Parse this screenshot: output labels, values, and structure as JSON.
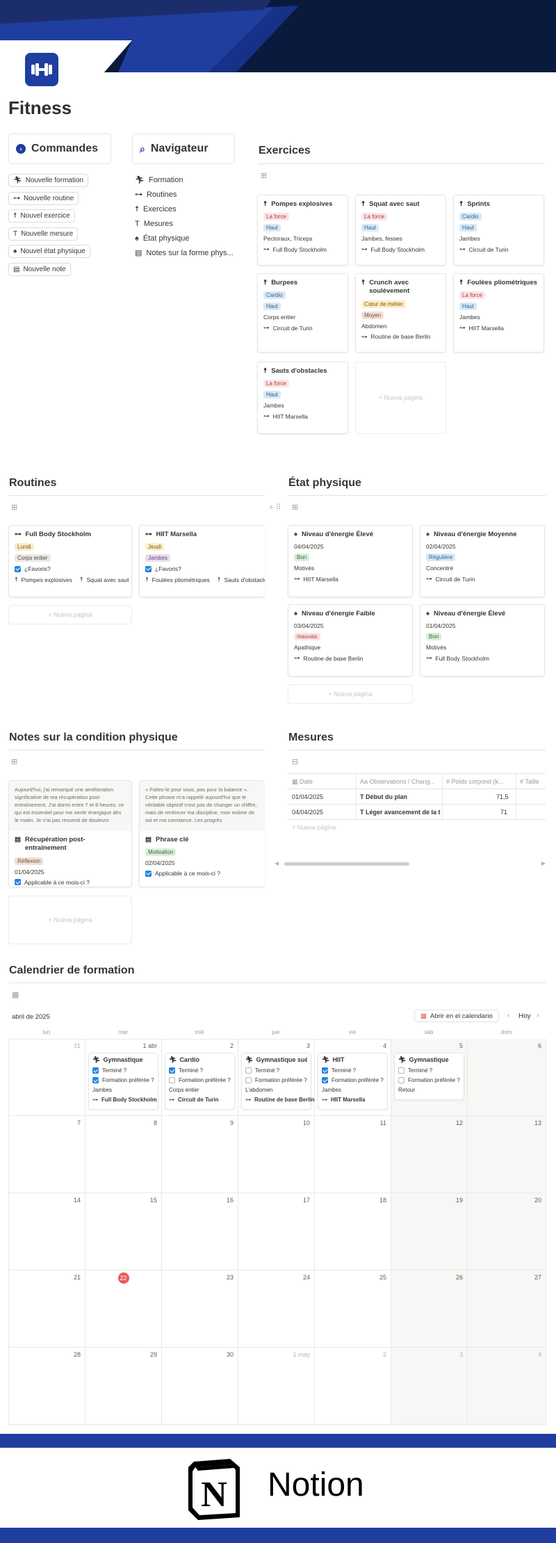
{
  "page": {
    "title": "Fitness"
  },
  "colors": {
    "navy": "#0a1a3d",
    "blue": "#1f3ea0",
    "accent_blue": "#2383e2",
    "today_red": "#eb5757"
  },
  "commandes": {
    "title": "Commandes",
    "buttons": [
      "Nouvelle formation",
      "Nouvelle routine",
      "Nouvel exercice",
      "Nouvelle mesure",
      "Nouvel état physique",
      "Nouvelle note"
    ]
  },
  "navigateur": {
    "title": "Navigateur",
    "items": [
      "Formation",
      "Routines",
      "Exercices",
      "Mesures",
      "État physique",
      "Notes sur la forme phys..."
    ]
  },
  "exercices": {
    "title": "Exercices",
    "cards": [
      {
        "title": "Pompes explosives",
        "tag1": "La force",
        "tag2": "Haut",
        "muscles": "Pectoraux, Triceps",
        "routine": "Full Body Stockholm"
      },
      {
        "title": "Squat avec saut",
        "tag1": "La force",
        "tag2": "Haut",
        "muscles": "Jambes, fesses",
        "routine": "Full Body Stockholm"
      },
      {
        "title": "Sprints",
        "tag1": "Cardio",
        "tag2": "Haut",
        "muscles": "Jambes",
        "routine": "Circuit de Turin"
      },
      {
        "title": "Burpees",
        "tag1": "Cardio",
        "tag2": "Haut",
        "muscles": "Corps entier",
        "routine": "Circuit de Turin"
      },
      {
        "title": "Crunch avec soulèvement",
        "tag1": "Cœur de métier",
        "tag2": "Moyen",
        "muscles": "Abdomen",
        "routine": "Routine de base Berlin"
      },
      {
        "title": "Foulées pliométriques",
        "tag1": "La force",
        "tag2": "Haut",
        "muscles": "Jambes",
        "routine": "HIIT Marsella"
      },
      {
        "title": "Sauts d'obstacles",
        "tag1": "La force",
        "tag2": "Haut",
        "muscles": "Jambes",
        "routine": "HIIT Marsella"
      }
    ],
    "new_page": "Nueva página"
  },
  "routines": {
    "title": "Routines",
    "cards": [
      {
        "title": "Full Body Stockholm",
        "day": "Lundi",
        "zone": "Corps entier",
        "fav": "¿Favoris?",
        "ex1": "Pompes explosives",
        "ex2": "Squat avec saut"
      },
      {
        "title": "HIIT Marsella",
        "day": "Jeudi",
        "zone": "Jambes",
        "fav": "¿Favoris?",
        "ex1": "Foulées pliométriques",
        "ex2": "Sauts d'obstacle"
      }
    ],
    "new_page": "Nueva página"
  },
  "etat": {
    "title": "État physique",
    "cards": [
      {
        "title": "Niveau d'énergie Élevé",
        "date": "04/04/2025",
        "tag": "Bon",
        "mood": "Motivés",
        "routine": "HIIT Marsella"
      },
      {
        "title": "Niveau d'énergie Moyenne",
        "date": "02/04/2025",
        "tag": "Régulière",
        "mood": "Concentré",
        "routine": "Circuit de Turin"
      },
      {
        "title": "Niveau d'énergie Faible",
        "date": "03/04/2025",
        "tag": "mauvais",
        "mood": "Apathique",
        "routine": "Routine de base Berlin"
      },
      {
        "title": "Niveau d'énergie Élevé",
        "date": "01/04/2025",
        "tag": "Bon",
        "mood": "Motivés",
        "routine": "Full Body Stockholm"
      }
    ],
    "new_page": "Nueva página"
  },
  "notes": {
    "title": "Notes sur la condition physique",
    "cards": [
      {
        "preview": "Aujourd'hui, j'ai remarqué une amélioration significative de ma récupération post-entraînement. J'ai dormi entre 7 et 8 heures, ce qui est essentiel pour me sentir énergique dès le matin. Je n'ai pas ressenti de douleurs",
        "title": "Récupération post-entraînement",
        "tag": "Réflexion",
        "date": "01/04/2025",
        "check": "Applicable à ce mois-ci ?"
      },
      {
        "preview": "« Faites-le pour vous, pas pour la balance ». Cette phrase m'a rappelé aujourd'hui que le véritable objectif n'est pas de changer un chiffre, mais de renforcer ma discipline, mon estime de soi et ma constance. Les progrès",
        "title": "Phrase clé",
        "tag": "Motivation",
        "date": "02/04/2025",
        "check": "Applicable à ce mois-ci ?"
      }
    ],
    "new_page": "Nueva página"
  },
  "mesures": {
    "title": "Mesures",
    "headers": [
      "Date",
      "Observations / Chang...",
      "Poids corporel (k...",
      "Taille"
    ],
    "rows": [
      {
        "date": "01/04/2025",
        "obs": "Début du plan",
        "poids": "71,5"
      },
      {
        "date": "04/04/2025",
        "obs": "Léger avancement de la t",
        "poids": "71"
      }
    ],
    "new_page": "Nueva página"
  },
  "calendar": {
    "title": "Calendrier de formation",
    "month": "abril de 2025",
    "open_btn": "Abrir en el calendario",
    "today_btn": "Hoy",
    "dows": [
      "lun",
      "mar",
      "mié",
      "jue",
      "vie",
      "sáb",
      "dom"
    ],
    "weeks": [
      [
        "31",
        "1 abr",
        "2",
        "3",
        "4",
        "5",
        "6"
      ],
      [
        "7",
        "8",
        "9",
        "10",
        "11",
        "12",
        "13"
      ],
      [
        "14",
        "15",
        "16",
        "17",
        "18",
        "19",
        "20"
      ],
      [
        "21",
        "22",
        "23",
        "24",
        "25",
        "26",
        "27"
      ],
      [
        "28",
        "29",
        "30",
        "1 may",
        "2",
        "3",
        "4"
      ]
    ],
    "events": [
      {
        "title": "Gymnastique",
        "done": "Terminé ?",
        "fav": "Formation préférée ?",
        "zone": "Jambes",
        "routine": "Full Body Stockholm"
      },
      {
        "title": "Cardio",
        "done": "Terminé ?",
        "fav": "Formation préférée ?",
        "zone": "Corps entier",
        "routine": "Circuit de Turin"
      },
      {
        "title": "Gymnastique sué...",
        "done": "Terminé ?",
        "fav": "Formation préférée ?",
        "zone": "L'abdomen",
        "routine": "Routine de base Berlin"
      },
      {
        "title": "HIIT",
        "done": "Terminé ?",
        "fav": "Formation préférée ?",
        "zone": "Jambes",
        "routine": "HIIT Marsella"
      },
      {
        "title": "Gymnastique",
        "done": "Terminé ?",
        "fav": "Formation préférée ?",
        "zone": "Retour",
        "routine": ""
      }
    ]
  },
  "footer": {
    "brand": "Notion",
    "logo_letter": "N"
  }
}
